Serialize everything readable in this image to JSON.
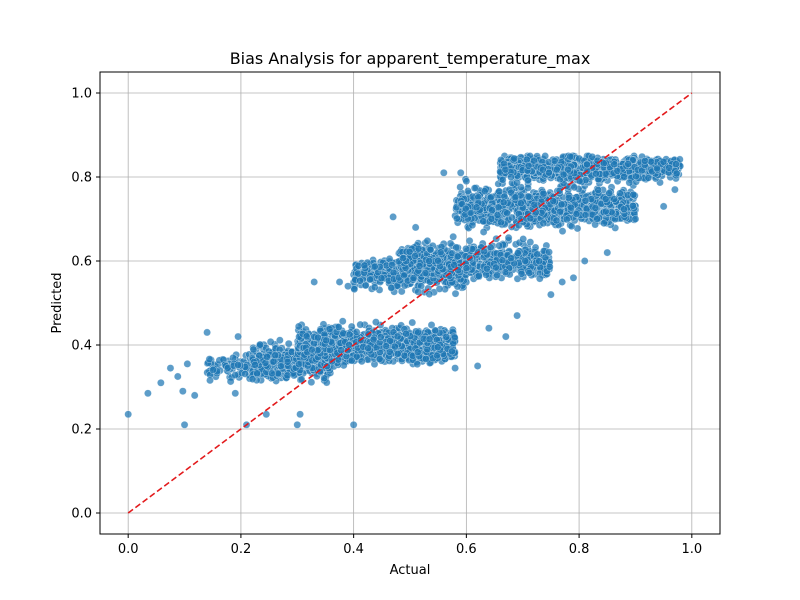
{
  "chart_data": {
    "type": "scatter",
    "title": "Bias Analysis for apparent_temperature_max",
    "xlabel": "Actual",
    "ylabel": "Predicted",
    "xlim": [
      -0.05,
      1.05
    ],
    "ylim": [
      -0.05,
      1.05
    ],
    "xticks": [
      0.0,
      0.2,
      0.4,
      0.6,
      0.8,
      1.0
    ],
    "yticks": [
      0.0,
      0.2,
      0.4,
      0.6,
      0.8,
      1.0
    ],
    "xtick_labels": [
      "0.0",
      "0.2",
      "0.4",
      "0.6",
      "0.8",
      "1.0"
    ],
    "ytick_labels": [
      "0.0",
      "0.2",
      "0.4",
      "0.6",
      "0.8",
      "1.0"
    ],
    "grid": true,
    "point_color": "#1f77b4",
    "reference_line": {
      "x": [
        0.0,
        1.0
      ],
      "y": [
        0.0,
        1.0
      ],
      "color": "#e31a1c",
      "style": "dashed"
    },
    "clusters": [
      {
        "x": [
          0.14,
          0.3
        ],
        "center": 0.345,
        "spread": 0.025,
        "count": 160
      },
      {
        "x": [
          0.22,
          0.36
        ],
        "center": 0.36,
        "spread": 0.035,
        "count": 380
      },
      {
        "x": [
          0.3,
          0.58
        ],
        "center": 0.4,
        "spread": 0.035,
        "count": 1100
      },
      {
        "x": [
          0.4,
          0.6
        ],
        "center": 0.57,
        "spread": 0.035,
        "count": 360
      },
      {
        "x": [
          0.48,
          0.75
        ],
        "center": 0.6,
        "spread": 0.035,
        "count": 650
      },
      {
        "x": [
          0.58,
          0.9
        ],
        "center": 0.73,
        "spread": 0.04,
        "count": 850
      },
      {
        "x": [
          0.66,
          0.98
        ],
        "center": 0.82,
        "spread": 0.025,
        "count": 950
      }
    ],
    "outliers": [
      [
        0.0,
        0.235
      ],
      [
        0.035,
        0.285
      ],
      [
        0.058,
        0.31
      ],
      [
        0.075,
        0.345
      ],
      [
        0.088,
        0.325
      ],
      [
        0.097,
        0.29
      ],
      [
        0.1,
        0.21
      ],
      [
        0.105,
        0.355
      ],
      [
        0.118,
        0.28
      ],
      [
        0.14,
        0.43
      ],
      [
        0.195,
        0.42
      ],
      [
        0.19,
        0.285
      ],
      [
        0.21,
        0.21
      ],
      [
        0.245,
        0.235
      ],
      [
        0.3,
        0.21
      ],
      [
        0.305,
        0.235
      ],
      [
        0.4,
        0.21
      ],
      [
        0.33,
        0.55
      ],
      [
        0.375,
        0.55
      ],
      [
        0.39,
        0.54
      ],
      [
        0.47,
        0.705
      ],
      [
        0.51,
        0.68
      ],
      [
        0.56,
        0.81
      ],
      [
        0.59,
        0.81
      ],
      [
        0.6,
        0.79
      ],
      [
        0.58,
        0.345
      ],
      [
        0.62,
        0.35
      ],
      [
        0.64,
        0.44
      ],
      [
        0.67,
        0.42
      ],
      [
        0.69,
        0.47
      ],
      [
        0.75,
        0.52
      ],
      [
        0.77,
        0.55
      ],
      [
        0.79,
        0.56
      ],
      [
        0.81,
        0.6
      ],
      [
        0.85,
        0.62
      ],
      [
        0.9,
        0.7
      ],
      [
        0.95,
        0.73
      ],
      [
        0.97,
        0.77
      ]
    ]
  }
}
